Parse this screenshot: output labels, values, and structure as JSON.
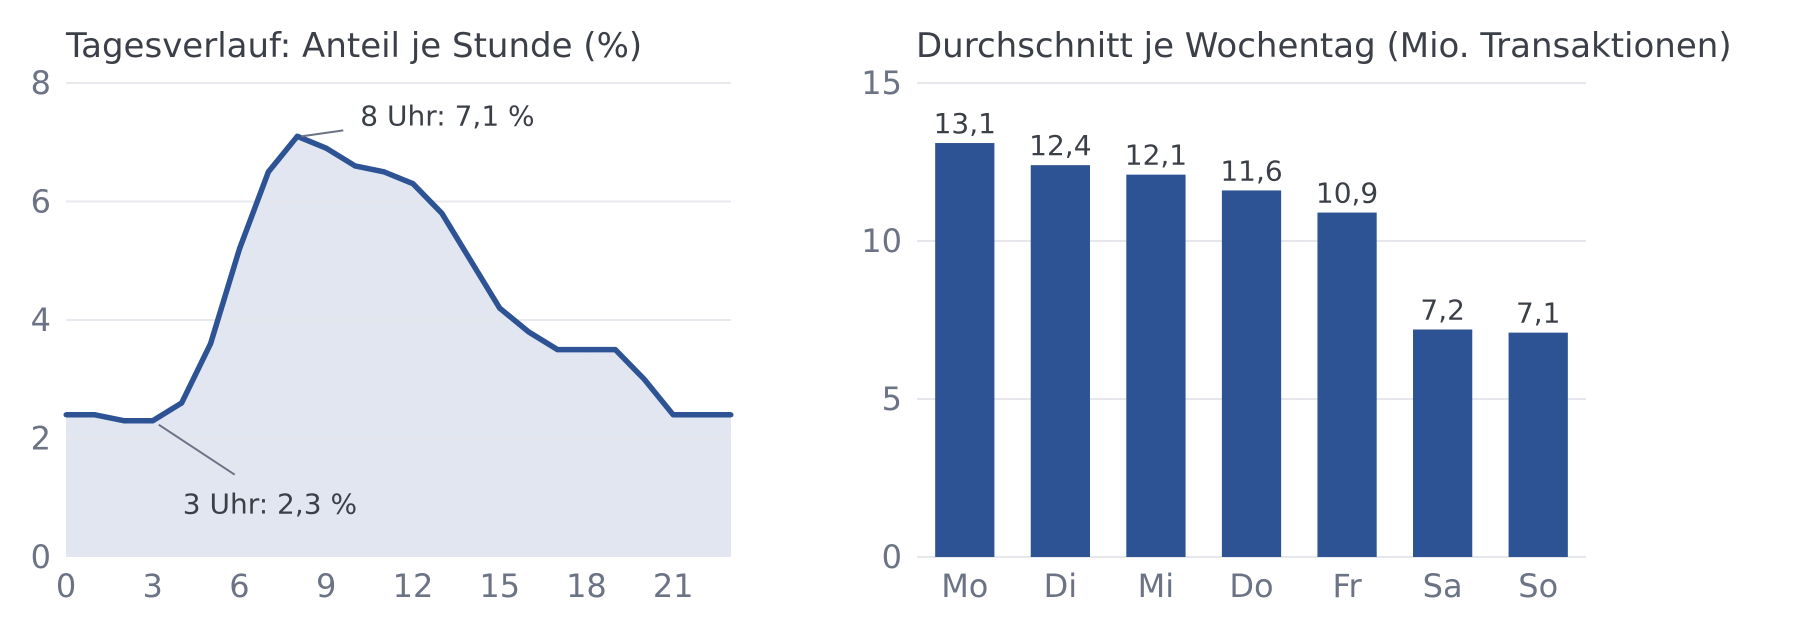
{
  "colors": {
    "accent": "#2e5394",
    "area_fill": "#e1e6f1",
    "grid": "#e6e7ec",
    "text": "#3b3f47",
    "tick": "#6b7385"
  },
  "chart_data": [
    {
      "type": "area",
      "title": "Tagesverlauf: Anteil je Stunde (%)",
      "xlabel": "",
      "ylabel": "",
      "x": [
        0,
        1,
        2,
        3,
        4,
        5,
        6,
        7,
        8,
        9,
        10,
        11,
        12,
        13,
        14,
        15,
        16,
        17,
        18,
        19,
        20,
        21,
        22,
        23
      ],
      "series": [
        {
          "values": [
            2.4,
            2.4,
            2.3,
            2.3,
            2.6,
            3.6,
            5.2,
            6.5,
            7.1,
            6.9,
            6.6,
            6.5,
            6.3,
            5.8,
            5.0,
            4.2,
            3.8,
            3.5,
            3.5,
            3.5,
            3.0,
            2.4,
            2.4,
            2.4
          ]
        }
      ],
      "xlim": [
        0,
        23
      ],
      "ylim": [
        0,
        8
      ],
      "xticks": [
        0,
        3,
        6,
        9,
        12,
        15,
        18,
        21
      ],
      "xtick_labels": [
        "0",
        "3",
        "6",
        "9",
        "12",
        "15",
        "18",
        "21"
      ],
      "yticks": [
        0,
        2,
        4,
        6,
        8
      ],
      "ytick_labels": [
        "0",
        "2",
        "4",
        "6",
        "8"
      ],
      "grid": true,
      "annotations": [
        {
          "x": 8,
          "y": 7.1,
          "text": "8 Uhr: 7,1 %"
        },
        {
          "x": 3,
          "y": 2.3,
          "text": "3 Uhr: 2,3 %"
        }
      ]
    },
    {
      "type": "bar",
      "title": "Durchschnitt je Wochentag (Mio. Transaktionen)",
      "xlabel": "",
      "ylabel": "",
      "categories": [
        "Mo",
        "Di",
        "Mi",
        "Do",
        "Fr",
        "Sa",
        "So"
      ],
      "values": [
        13.1,
        12.4,
        12.1,
        11.6,
        10.9,
        7.2,
        7.1
      ],
      "data_labels": [
        "13,1",
        "12,4",
        "12,1",
        "11,6",
        "10,9",
        "7,2",
        "7,1"
      ],
      "ylim": [
        0,
        15
      ],
      "yticks": [
        0,
        5,
        10,
        15
      ],
      "ytick_labels": [
        "0",
        "5",
        "10",
        "15"
      ],
      "grid": true
    }
  ]
}
